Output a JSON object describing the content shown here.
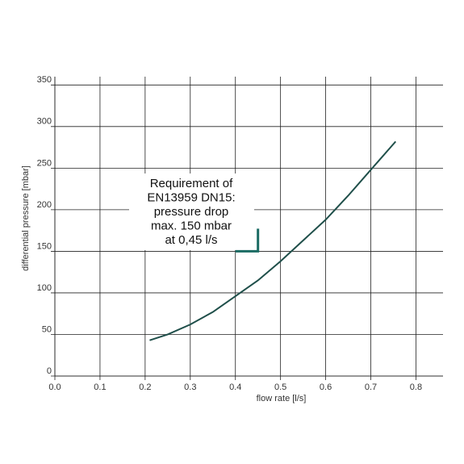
{
  "chart_data": {
    "type": "line",
    "x_label": "flow rate [l/s]",
    "y_label": "differential pressure [mbar]",
    "x": [
      0.21,
      0.25,
      0.3,
      0.35,
      0.4,
      0.45,
      0.5,
      0.55,
      0.6,
      0.65,
      0.7,
      0.755
    ],
    "series": [
      {
        "color": "#1f4f4a",
        "values": [
          43,
          50,
          62,
          77,
          96,
          115,
          138,
          163,
          188,
          217,
          248,
          282
        ]
      }
    ],
    "xlim": [
      0,
      0.86
    ],
    "ylim": [
      0,
      360
    ],
    "xticks": [
      {
        "value": 0,
        "label": "0.0"
      },
      0.1,
      0.2,
      0.3,
      0.4,
      0.5,
      0.6,
      0.7,
      0.8
    ],
    "yticks": [
      0,
      50,
      100,
      150,
      200,
      250,
      300,
      350
    ],
    "grid": true,
    "annotation": {
      "lines": [
        "Requirement of",
        "EN13959 DN15:",
        "pressure drop",
        "max. 150 mbar",
        "at 0,45 l/s"
      ],
      "marker_x": 0.45,
      "marker_y": 150,
      "color": "#1a6b63"
    }
  }
}
